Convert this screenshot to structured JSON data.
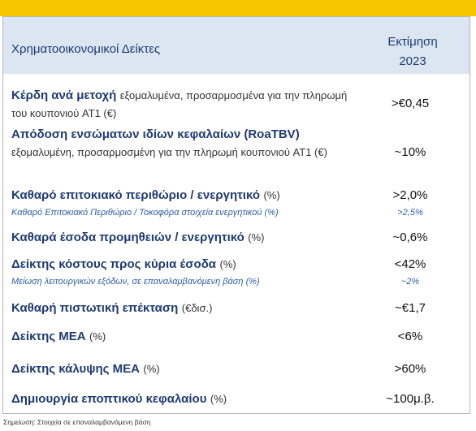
{
  "header": {
    "title": "Χρηματοοικονομικοί Δείκτες",
    "column": "Εκτίμηση 2023"
  },
  "rows": [
    {
      "title": "Κέρδη ανά μετοχή",
      "note": "εξομαλυμένα, προσαρμοσμένα για την πληρωμή του κουπονιού AT1 (€)",
      "value": ">€0,45"
    },
    {
      "title": "Απόδοση ενσώματων ιδίων κεφαλαίων (RoaTBV)",
      "note": "εξομαλυμένη, προσαρμοσμένη για την πληρωμή κουπονιού AT1 (€)",
      "value": "~10%"
    },
    {
      "title": "Καθαρό επιτοκιακό περιθώριο / ενεργητικό",
      "note": "(%)",
      "subtitle": "Καθαρό Επιτοκιακό Περιθώριο / Τοκοφόρα στοιχεία ενεργητικού (%)",
      "value": ">2,0%",
      "subvalue": ">2,5%"
    },
    {
      "title": "Καθαρά έσοδα προμηθειών / ενεργητικό",
      "note": "(%)",
      "value": "~0,6%"
    },
    {
      "title": "Δείκτης κόστους προς κύρια έσοδα",
      "note": "(%)",
      "subtitle": "Μείωση λειτουργικών εξόδων, σε επαναλαμβανόμενη βάση (%)",
      "value": "<42%",
      "subvalue": "~2%"
    },
    {
      "title": "Καθαρή πιστωτική επέκταση",
      "note": "(€δισ.)",
      "value": "~€1,7"
    },
    {
      "title": "Δείκτης ΜΕΑ",
      "note": "(%)",
      "value": "<6%"
    },
    {
      "title": "Δείκτης κάλυψης ΜΕΑ",
      "note": "(%)",
      "value": ">60%"
    },
    {
      "title": "Δημιουργία εποπτικού κεφαλαίου",
      "note": "(%)",
      "value": "~100μ.β."
    }
  ],
  "footnote": "Σημείωση: Στοιχεία σε επαναλαμβανόμενη βάση"
}
